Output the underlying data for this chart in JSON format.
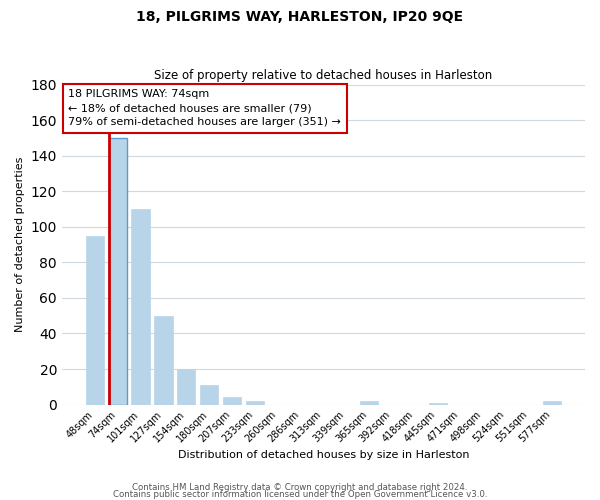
{
  "title": "18, PILGRIMS WAY, HARLESTON, IP20 9QE",
  "subtitle": "Size of property relative to detached houses in Harleston",
  "xlabel": "Distribution of detached houses by size in Harleston",
  "ylabel": "Number of detached properties",
  "categories": [
    "48sqm",
    "74sqm",
    "101sqm",
    "127sqm",
    "154sqm",
    "180sqm",
    "207sqm",
    "233sqm",
    "260sqm",
    "286sqm",
    "313sqm",
    "339sqm",
    "365sqm",
    "392sqm",
    "418sqm",
    "445sqm",
    "471sqm",
    "498sqm",
    "524sqm",
    "551sqm",
    "577sqm"
  ],
  "values": [
    95,
    150,
    110,
    50,
    20,
    11,
    4,
    2,
    0,
    0,
    0,
    0,
    2,
    0,
    0,
    1,
    0,
    0,
    0,
    0,
    2
  ],
  "bar_color": "#b8d4e8",
  "highlight_bar_index": 1,
  "highlight_outline_color": "#cc0000",
  "ylim": [
    0,
    180
  ],
  "yticks": [
    0,
    20,
    40,
    60,
    80,
    100,
    120,
    140,
    160,
    180
  ],
  "annotation_title": "18 PILGRIMS WAY: 74sqm",
  "annotation_line1": "← 18% of detached houses are smaller (79)",
  "annotation_line2": "79% of semi-detached houses are larger (351) →",
  "annotation_box_color": "#ffffff",
  "annotation_box_edge_color": "#cc0000",
  "footer_line1": "Contains HM Land Registry data © Crown copyright and database right 2024.",
  "footer_line2": "Contains public sector information licensed under the Open Government Licence v3.0.",
  "background_color": "#ffffff",
  "grid_color": "#d0d8e0"
}
